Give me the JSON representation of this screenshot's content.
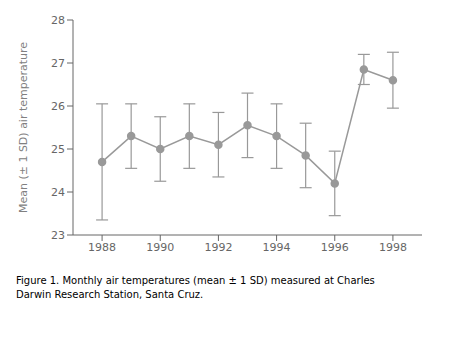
{
  "chart_data": {
    "type": "line",
    "x": [
      1988,
      1989,
      1990,
      1991,
      1992,
      1993,
      1994,
      1995,
      1996,
      1997,
      1998
    ],
    "values": [
      24.7,
      25.3,
      25.0,
      25.3,
      25.1,
      25.55,
      25.3,
      24.85,
      24.2,
      26.85,
      26.6
    ],
    "errors": [
      1.35,
      0.75,
      0.75,
      0.75,
      0.75,
      0.75,
      0.75,
      0.75,
      0.75,
      0.35,
      0.65
    ],
    "ylabel": "Mean (± 1 SD) air temperature",
    "annotation": "Figure 1.  Monthly air temperatures (mean ± 1 SD) measured at Charles\nDarwin Research Station, Santa Cruz.",
    "xlim": [
      1987.0,
      1999.0
    ],
    "xticks": [
      1988,
      1990,
      1992,
      1994,
      1996,
      1998
    ],
    "ylim": [
      23,
      28
    ],
    "yticks": [
      23,
      24,
      25,
      26,
      27,
      28
    ],
    "color": "#999999",
    "marker": "circle",
    "grid": false
  }
}
